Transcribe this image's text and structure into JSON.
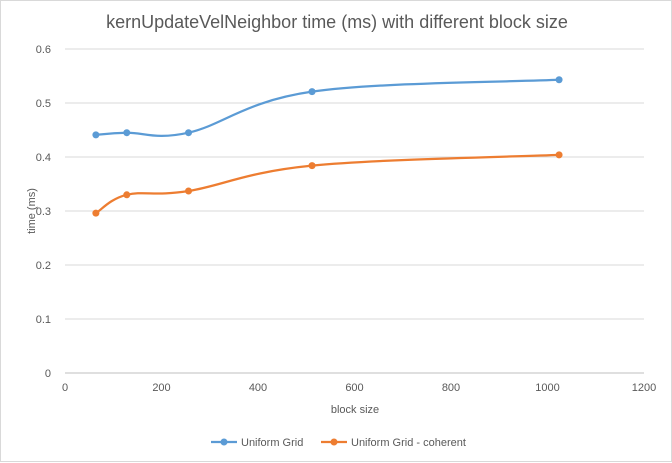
{
  "chart_data": {
    "type": "scatter",
    "title": "kernUpdateVelNeighbor time (ms) with different block size",
    "xlabel": "block size",
    "ylabel": "time (ms)",
    "xlim": [
      0,
      1200
    ],
    "ylim": [
      0,
      0.6
    ],
    "xticks": [
      0,
      200,
      400,
      600,
      800,
      1000,
      1200
    ],
    "yticks": [
      0,
      0.1,
      0.2,
      0.3,
      0.4,
      0.5,
      0.6
    ],
    "x_tick_labels": [
      "0",
      "200",
      "400",
      "600",
      "800",
      "1000",
      "1200"
    ],
    "y_tick_labels": [
      "0",
      "0.1",
      "0.2",
      "0.3",
      "0.4",
      "0.5",
      "0.6"
    ],
    "grid": "horizontal",
    "legend_position": "bottom",
    "line_style": "smoothed lines with markers",
    "x": [
      64,
      128,
      256,
      512,
      1024
    ],
    "series": [
      {
        "name": "Uniform Grid",
        "color": "#5b9bd5",
        "values": [
          0.441,
          0.445,
          0.445,
          0.521,
          0.543
        ]
      },
      {
        "name": "Uniform Grid - coherent",
        "color": "#ed7d31",
        "values": [
          0.296,
          0.33,
          0.337,
          0.384,
          0.404
        ]
      }
    ]
  }
}
